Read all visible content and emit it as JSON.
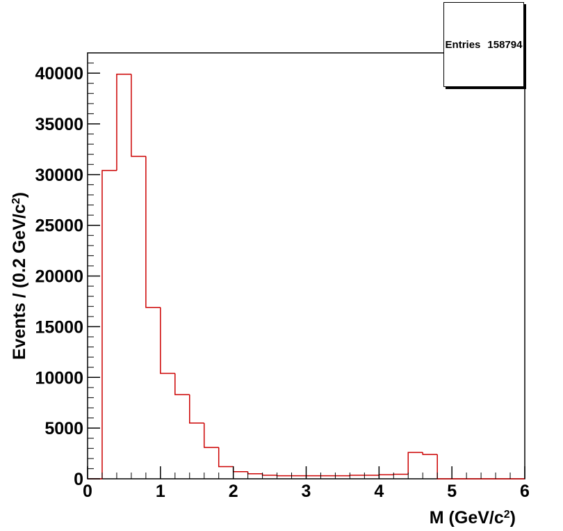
{
  "stats": {
    "label": "Entries",
    "value": "158794"
  },
  "chart_data": {
    "type": "histogram",
    "xlabel": "M (GeV/c",
    "xlabel_sup": "2",
    "xlabel_close": ")",
    "ylabel": "Events / (0.2 GeV/c",
    "ylabel_sup": "2",
    "ylabel_close": ")",
    "xlim": [
      0,
      6
    ],
    "ylim": [
      0,
      42000
    ],
    "x_ticks": [
      0,
      1,
      2,
      3,
      4,
      5,
      6
    ],
    "x_tick_labels": [
      "0",
      "1",
      "2",
      "3",
      "4",
      "5",
      "6"
    ],
    "y_ticks": [
      0,
      5000,
      10000,
      15000,
      20000,
      25000,
      30000,
      35000,
      40000
    ],
    "y_tick_labels": [
      "0",
      "5000",
      "10000",
      "15000",
      "20000",
      "25000",
      "30000",
      "35000",
      "40000"
    ],
    "bin_edges": [
      0,
      0.2,
      0.4,
      0.6,
      0.8,
      1.0,
      1.2,
      1.4,
      1.6,
      1.8,
      2.0,
      2.2,
      2.4,
      2.6,
      2.8,
      3.0,
      3.2,
      3.4,
      3.6,
      3.8,
      4.0,
      4.2,
      4.4,
      4.6,
      4.8,
      5.0,
      5.2,
      5.4,
      5.6,
      5.8,
      6.0
    ],
    "values": [
      0,
      30400,
      39900,
      31800,
      16900,
      10400,
      8300,
      5500,
      3100,
      1200,
      700,
      500,
      350,
      300,
      300,
      300,
      300,
      300,
      350,
      350,
      400,
      450,
      2600,
      2400,
      0,
      0,
      0,
      0,
      0,
      0
    ],
    "line_color": "#cc0000",
    "grid": false
  }
}
